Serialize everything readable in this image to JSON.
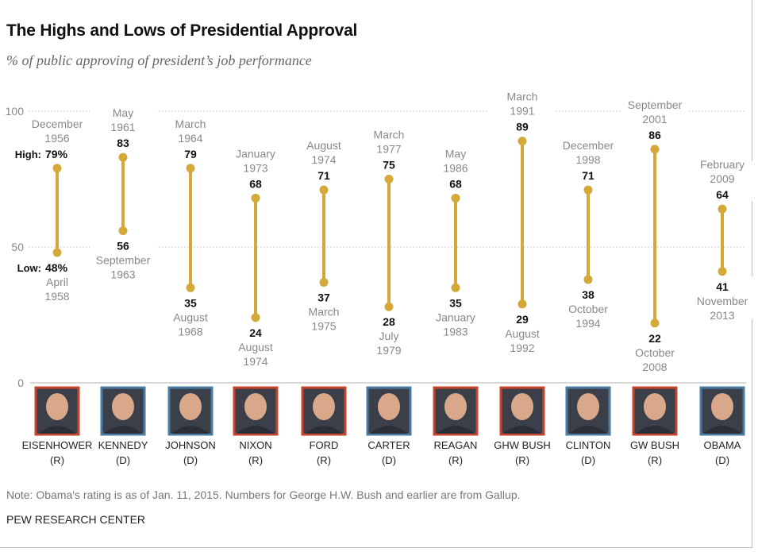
{
  "title": "The Highs and Lows of Presidential Approval",
  "subtitle": "% of public approving of president’s job performance",
  "note": "Note: Obama's rating is as of Jan. 11, 2015. Numbers for George H.W. Bush and earlier are from Gallup.",
  "source": "PEW RESEARCH CENTER",
  "colors": {
    "bar": "#d4a93a",
    "republican": "#c8442f",
    "democrat": "#4b7ba0"
  },
  "chart_data": {
    "type": "range",
    "ylim": [
      0,
      100
    ],
    "yticks": [
      "0",
      "50",
      "100"
    ],
    "grid": "dotted",
    "high_prefix": "High: ",
    "low_prefix": "Low: ",
    "presidents": [
      {
        "name": "EISENHOWER",
        "party": "(R)",
        "high": 79,
        "high_date": [
          "December",
          "1956"
        ],
        "low": 48,
        "low_date": [
          "April",
          "1958"
        ]
      },
      {
        "name": "KENNEDY",
        "party": "(D)",
        "high": 83,
        "high_date": [
          "May",
          "1961"
        ],
        "low": 56,
        "low_date": [
          "September",
          "1963"
        ]
      },
      {
        "name": "JOHNSON",
        "party": "(D)",
        "high": 79,
        "high_date": [
          "March",
          "1964"
        ],
        "low": 35,
        "low_date": [
          "August",
          "1968"
        ]
      },
      {
        "name": "NIXON",
        "party": "(R)",
        "high": 68,
        "high_date": [
          "January",
          "1973"
        ],
        "low": 24,
        "low_date": [
          "August",
          "1974"
        ]
      },
      {
        "name": "FORD",
        "party": "(R)",
        "high": 71,
        "high_date": [
          "August",
          "1974"
        ],
        "low": 37,
        "low_date": [
          "March",
          "1975"
        ]
      },
      {
        "name": "CARTER",
        "party": "(D)",
        "high": 75,
        "high_date": [
          "March",
          "1977"
        ],
        "low": 28,
        "low_date": [
          "July",
          "1979"
        ]
      },
      {
        "name": "REAGAN",
        "party": "(R)",
        "high": 68,
        "high_date": [
          "May",
          "1986"
        ],
        "low": 35,
        "low_date": [
          "January",
          "1983"
        ]
      },
      {
        "name": "GHW BUSH",
        "party": "(R)",
        "high": 89,
        "high_date": [
          "March",
          "1991"
        ],
        "low": 29,
        "low_date": [
          "August",
          "1992"
        ]
      },
      {
        "name": "CLINTON",
        "party": "(D)",
        "high": 71,
        "high_date": [
          "December",
          "1998"
        ],
        "low": 38,
        "low_date": [
          "October",
          "1994"
        ]
      },
      {
        "name": "GW BUSH",
        "party": "(R)",
        "high": 86,
        "high_date": [
          "September",
          "2001"
        ],
        "low": 22,
        "low_date": [
          "October",
          "2008"
        ]
      },
      {
        "name": "OBAMA",
        "party": "(D)",
        "high": 64,
        "high_date": [
          "February",
          "2009"
        ],
        "low": 41,
        "low_date": [
          "November",
          "2013"
        ]
      }
    ]
  }
}
